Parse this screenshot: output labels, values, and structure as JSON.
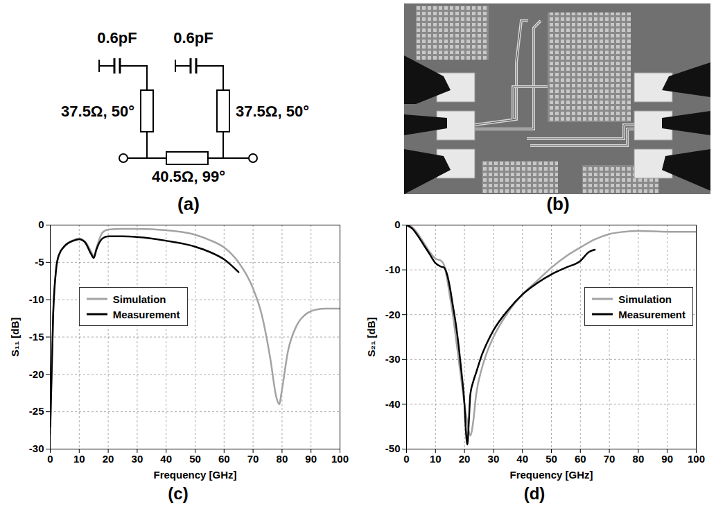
{
  "panel_labels": [
    "(a)",
    "(b)",
    "(c)",
    "(d)"
  ],
  "diagram": {
    "capacitors": [
      {
        "label": "0.6pF"
      },
      {
        "label": "0.6pF"
      }
    ],
    "stubs": [
      {
        "label": "37.5Ω, 50°"
      },
      {
        "label": "37.5Ω, 50°"
      }
    ],
    "line": {
      "label": "40.5Ω, 99°"
    }
  },
  "chart_data": [
    {
      "type": "line",
      "xlabel": "Frequency [GHz]",
      "ylabel": "S₁₁ [dB]",
      "xlim": [
        0,
        100
      ],
      "xticks": [
        0,
        10,
        20,
        30,
        40,
        50,
        60,
        70,
        80,
        90,
        100
      ],
      "ylim": [
        -30,
        0
      ],
      "yticks": [
        -30,
        -25,
        -20,
        -15,
        -10,
        -5,
        0
      ],
      "grid": true,
      "legend": "center left",
      "series": [
        {
          "name": "Simulation",
          "color": "#a3a3a3",
          "x": [
            0,
            1,
            2,
            3,
            5,
            8,
            10,
            12,
            14,
            15,
            16,
            18,
            20,
            25,
            30,
            40,
            50,
            55,
            60,
            65,
            70,
            73,
            76,
            78,
            79,
            80,
            82,
            85,
            88,
            92,
            95,
            100
          ],
          "values": [
            -28,
            -12,
            -6,
            -4,
            -2.8,
            -2,
            -1.8,
            -2.2,
            -3.5,
            -4.2,
            -3,
            -1,
            -0.6,
            -0.5,
            -0.5,
            -0.7,
            -1.3,
            -2,
            -3,
            -5,
            -8.5,
            -12,
            -18,
            -23,
            -24,
            -22,
            -17,
            -13.5,
            -12,
            -11.3,
            -11.2,
            -11.2
          ]
        },
        {
          "name": "Measurement",
          "color": "#000000",
          "x": [
            0,
            1,
            2,
            3,
            5,
            8,
            10,
            12,
            14,
            15,
            16,
            18,
            20,
            25,
            30,
            40,
            50,
            55,
            60,
            65
          ],
          "values": [
            -27,
            -12,
            -6,
            -4,
            -2.8,
            -2.1,
            -1.9,
            -2.3,
            -3.8,
            -4.4,
            -3.2,
            -1.8,
            -1.5,
            -1.5,
            -1.6,
            -2.1,
            -2.9,
            -3.6,
            -4.6,
            -6.3
          ]
        }
      ]
    },
    {
      "type": "line",
      "xlabel": "Frequency [GHz]",
      "ylabel": "S₂₁ [dB]",
      "xlim": [
        0,
        100
      ],
      "xticks": [
        0,
        10,
        20,
        30,
        40,
        50,
        60,
        70,
        80,
        90,
        100
      ],
      "ylim": [
        -50,
        0
      ],
      "yticks": [
        -50,
        -40,
        -30,
        -20,
        -10,
        0
      ],
      "grid": true,
      "legend": "center right",
      "series": [
        {
          "name": "Simulation",
          "color": "#a3a3a3",
          "x": [
            0,
            2,
            4,
            6,
            8,
            10,
            12,
            13,
            14,
            15,
            16,
            17,
            18,
            19,
            20,
            21,
            22,
            23,
            24,
            26,
            28,
            30,
            35,
            40,
            45,
            50,
            55,
            60,
            65,
            70,
            75,
            80,
            90,
            100
          ],
          "values": [
            0,
            -0.5,
            -2,
            -4,
            -6,
            -7.5,
            -8,
            -9,
            -12,
            -16,
            -20,
            -25,
            -30,
            -35,
            -40,
            -44,
            -47,
            -44,
            -38,
            -32,
            -28,
            -25,
            -19.5,
            -15.5,
            -12.5,
            -9.5,
            -7,
            -5,
            -3.2,
            -2,
            -1.5,
            -1.3,
            -1.5,
            -1.5
          ]
        },
        {
          "name": "Measurement",
          "color": "#000000",
          "x": [
            0,
            2,
            4,
            6,
            8,
            10,
            12,
            13,
            14,
            15,
            16,
            17,
            18,
            19,
            20,
            20.5,
            21,
            21.5,
            22,
            23,
            24,
            26,
            28,
            30,
            35,
            40,
            45,
            50,
            55,
            60,
            63,
            65
          ],
          "values": [
            0,
            -0.8,
            -2.5,
            -4.5,
            -6.5,
            -8.5,
            -9.3,
            -9.5,
            -11,
            -14,
            -18,
            -22,
            -27,
            -33,
            -40,
            -46,
            -49,
            -44,
            -38,
            -35,
            -33,
            -29,
            -26,
            -23.5,
            -19,
            -15.5,
            -13,
            -11,
            -9.5,
            -8,
            -6,
            -5.5
          ]
        }
      ]
    }
  ]
}
